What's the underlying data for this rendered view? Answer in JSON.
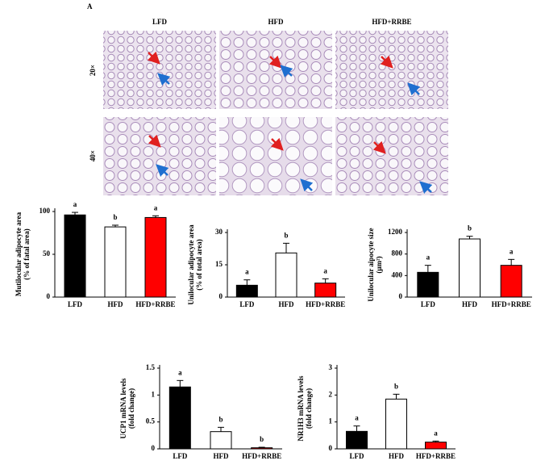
{
  "figure": {
    "panel_label": "A",
    "columns": [
      "LFD",
      "HFD",
      "HFD+RRBE"
    ],
    "rows": [
      "20×",
      "40×"
    ]
  },
  "chart_data": [
    {
      "type": "bar",
      "ylabel": [
        "Mutilocular adipocyte area",
        "(% of fatal area)"
      ],
      "categories": [
        "LFD",
        "HFD",
        "HFD+RRBE"
      ],
      "values": [
        96,
        82,
        93
      ],
      "errors": [
        3,
        2,
        2
      ],
      "letters": [
        "a",
        "b",
        "a"
      ],
      "colors": [
        "#000000",
        "#ffffff",
        "#ff0000"
      ],
      "ylim": [
        0,
        100
      ],
      "yticks": [
        0,
        50,
        100
      ]
    },
    {
      "type": "bar",
      "ylabel": [
        "Unilocular adipocyte area",
        "(% of total area)"
      ],
      "categories": [
        "LFD",
        "HFD",
        "HFD+RRBE"
      ],
      "values": [
        5.5,
        20.5,
        6.5
      ],
      "errors": [
        2.5,
        4.5,
        2
      ],
      "letters": [
        "a",
        "b",
        "a"
      ],
      "colors": [
        "#000000",
        "#ffffff",
        "#ff0000"
      ],
      "ylim": [
        0,
        30
      ],
      "yticks": [
        0,
        15,
        30
      ]
    },
    {
      "type": "bar",
      "ylabel": [
        "Unilocular aipocyte size",
        "(μm²)"
      ],
      "categories": [
        "LFD",
        "HFD",
        "HFD+RRBE"
      ],
      "values": [
        460,
        1080,
        590
      ],
      "errors": [
        130,
        50,
        110
      ],
      "letters": [
        "a",
        "b",
        "a"
      ],
      "colors": [
        "#000000",
        "#ffffff",
        "#ff0000"
      ],
      "ylim": [
        0,
        1200
      ],
      "yticks": [
        0,
        400,
        800,
        1200
      ]
    },
    {
      "type": "bar",
      "ylabel": [
        "UCP1 mRNA levels",
        "(fold change)"
      ],
      "categories": [
        "LFD",
        "HFD",
        "HFD+RRBE"
      ],
      "values": [
        1.15,
        0.32,
        0.02
      ],
      "errors": [
        0.12,
        0.08,
        0.01
      ],
      "letters": [
        "a",
        "b",
        "b"
      ],
      "colors": [
        "#000000",
        "#ffffff",
        "#ff0000"
      ],
      "ylim": [
        0,
        1.5
      ],
      "yticks": [
        0,
        0.5,
        1,
        1.5
      ]
    },
    {
      "type": "bar",
      "ylabel": [
        "NR1H3 mRNA levels",
        "(fold change)"
      ],
      "categories": [
        "LFD",
        "HFD",
        "HFD+RRBE"
      ],
      "values": [
        0.65,
        1.85,
        0.25
      ],
      "errors": [
        0.2,
        0.18,
        0.04
      ],
      "letters": [
        "a",
        "b",
        "a"
      ],
      "colors": [
        "#000000",
        "#ffffff",
        "#ff0000"
      ],
      "ylim": [
        0,
        3
      ],
      "yticks": [
        0,
        1,
        2,
        3
      ]
    }
  ]
}
